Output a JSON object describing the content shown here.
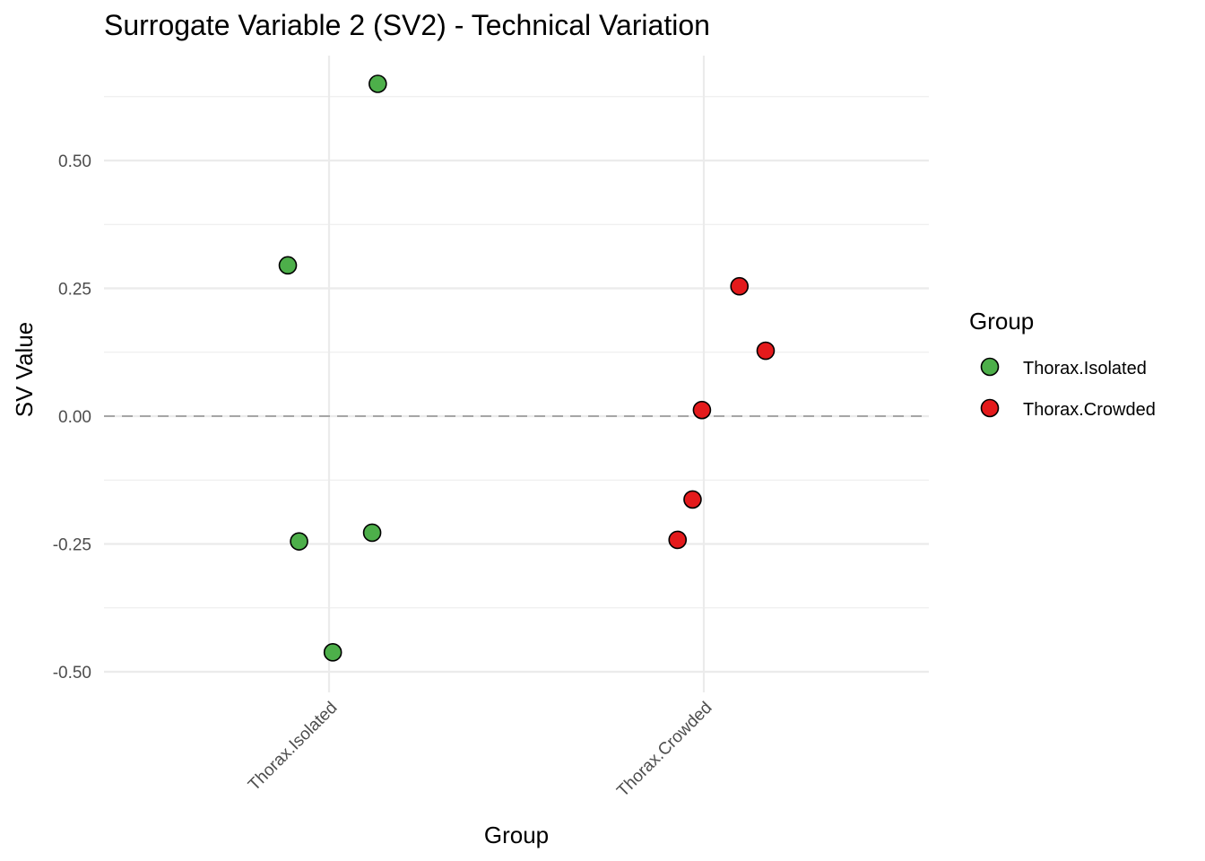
{
  "chart_data": {
    "type": "scatter",
    "title": "Surrogate Variable 2 (SV2) - Technical Variation",
    "xlabel": "Group",
    "ylabel": "SV Value",
    "categories": [
      "Thorax.Isolated",
      "Thorax.Crowded"
    ],
    "y_ticks": [
      0.5,
      0.25,
      0.0,
      -0.25,
      -0.5
    ],
    "y_tick_labels": [
      "0.50",
      "0.25",
      "0.00",
      "-0.25",
      "-0.50"
    ],
    "ylim": [
      -0.53,
      0.72
    ],
    "reference_line": {
      "y": 0.0,
      "style": "dashed"
    },
    "legend": {
      "title": "Group",
      "position": "right",
      "entries": [
        {
          "label": "Thorax.Isolated",
          "color": "#4DAF4A"
        },
        {
          "label": "Thorax.Crowded",
          "color": "#E41A1C"
        }
      ]
    },
    "series": [
      {
        "name": "Thorax.Isolated",
        "color": "#4DAF4A",
        "category": "Thorax.Isolated",
        "jitter": [
          0.13,
          -0.11,
          -0.08,
          0.115,
          0.01
        ],
        "values": [
          0.65,
          0.295,
          -0.245,
          -0.228,
          -0.462
        ]
      },
      {
        "name": "Thorax.Crowded",
        "color": "#E41A1C",
        "category": "Thorax.Crowded",
        "jitter": [
          0.095,
          0.165,
          -0.005,
          -0.03,
          -0.07
        ],
        "values": [
          0.254,
          0.128,
          0.012,
          -0.163,
          -0.242
        ]
      }
    ]
  }
}
